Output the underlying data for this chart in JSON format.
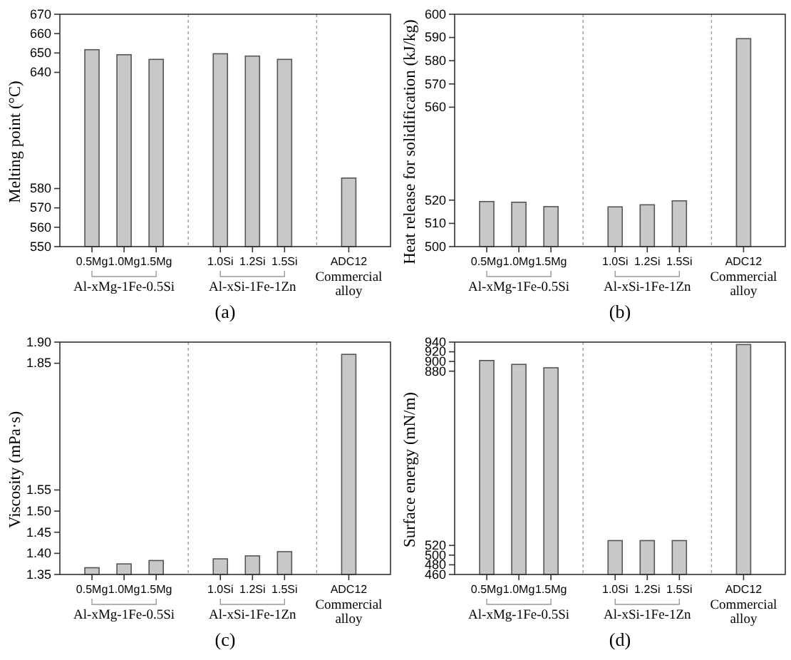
{
  "chart_data": [
    {
      "type": "bar",
      "title": "(a)",
      "ylabel": "Melting point (°C)",
      "categories": [
        "0.5Mg",
        "1.0Mg",
        "1.5Mg",
        null,
        "1.0Si",
        "1.2Si",
        "1.5Si",
        null,
        "ADC12"
      ],
      "values": [
        651.7,
        649.1,
        646.7,
        null,
        649.6,
        648.4,
        646.7,
        null,
        585.4
      ],
      "color": "#c8c8c8",
      "ylim": [
        550,
        670
      ],
      "yticks": [
        550,
        560,
        570,
        580,
        640,
        650,
        660,
        670
      ],
      "annotations": [
        "Al-xMg-1Fe-0.5Si",
        "Al-xSi-1Fe-1Zn",
        "Commercial alloy"
      ]
    },
    {
      "type": "bar",
      "title": "(b)",
      "ylabel": "Heat release for solidification (kJ/kg)",
      "categories": [
        "0.5Mg",
        "1.0Mg",
        "1.5Mg",
        null,
        "1.0Si",
        "1.2Si",
        "1.5Si",
        null,
        "ADC12"
      ],
      "values": [
        519.4,
        519.1,
        517.2,
        null,
        517.1,
        518.0,
        519.7,
        null,
        589.5
      ],
      "color": "#c8c8c8",
      "ylim": [
        500,
        600
      ],
      "yticks": [
        500,
        510,
        520,
        560,
        570,
        580,
        590,
        600
      ],
      "annotations": [
        "Al-xMg-1Fe-0.5Si",
        "Al-xSi-1Fe-1Zn",
        "Commercial alloy"
      ]
    },
    {
      "type": "bar",
      "title": "(c)",
      "ylabel": "Viscosity (mPa·s)",
      "categories": [
        "0.5Mg",
        "1.0Mg",
        "1.5Mg",
        null,
        "1.0Si",
        "1.2Si",
        "1.5Si",
        null,
        "ADC12"
      ],
      "values": [
        1.366,
        1.375,
        1.383,
        null,
        1.387,
        1.394,
        1.404,
        null,
        1.871
      ],
      "color": "#c8c8c8",
      "ylim": [
        1.35,
        1.9
      ],
      "yticks": [
        {
          "value": 1.35,
          "label": "1.35"
        },
        {
          "value": 1.4,
          "label": "1.40"
        },
        {
          "value": 1.45,
          "label": "1.45"
        },
        {
          "value": 1.5,
          "label": "1.50"
        },
        {
          "value": 1.55,
          "label": "1.55"
        },
        {
          "value": 1.85,
          "label": "1.85"
        },
        {
          "value": 1.9,
          "label": "1.90"
        }
      ],
      "annotations": [
        "Al-xMg-1Fe-0.5Si",
        "Al-xSi-1Fe-1Zn",
        "Commercial alloy"
      ]
    },
    {
      "type": "bar",
      "title": "(d)",
      "ylabel": "Surface energy (mN/m)",
      "categories": [
        "0.5Mg",
        "1.0Mg",
        "1.5Mg",
        null,
        "1.0Si",
        "1.2Si",
        "1.5Si",
        null,
        "ADC12"
      ],
      "values": [
        902,
        894,
        887,
        null,
        530,
        530,
        530,
        null,
        935
      ],
      "color": "#c8c8c8",
      "ylim": [
        460,
        940
      ],
      "yticks": [
        460,
        480,
        500,
        520,
        880,
        900,
        920,
        940
      ],
      "annotations": [
        "Al-xMg-1Fe-0.5Si",
        "Al-xSi-1Fe-1Zn",
        "Commercial alloy"
      ]
    }
  ]
}
